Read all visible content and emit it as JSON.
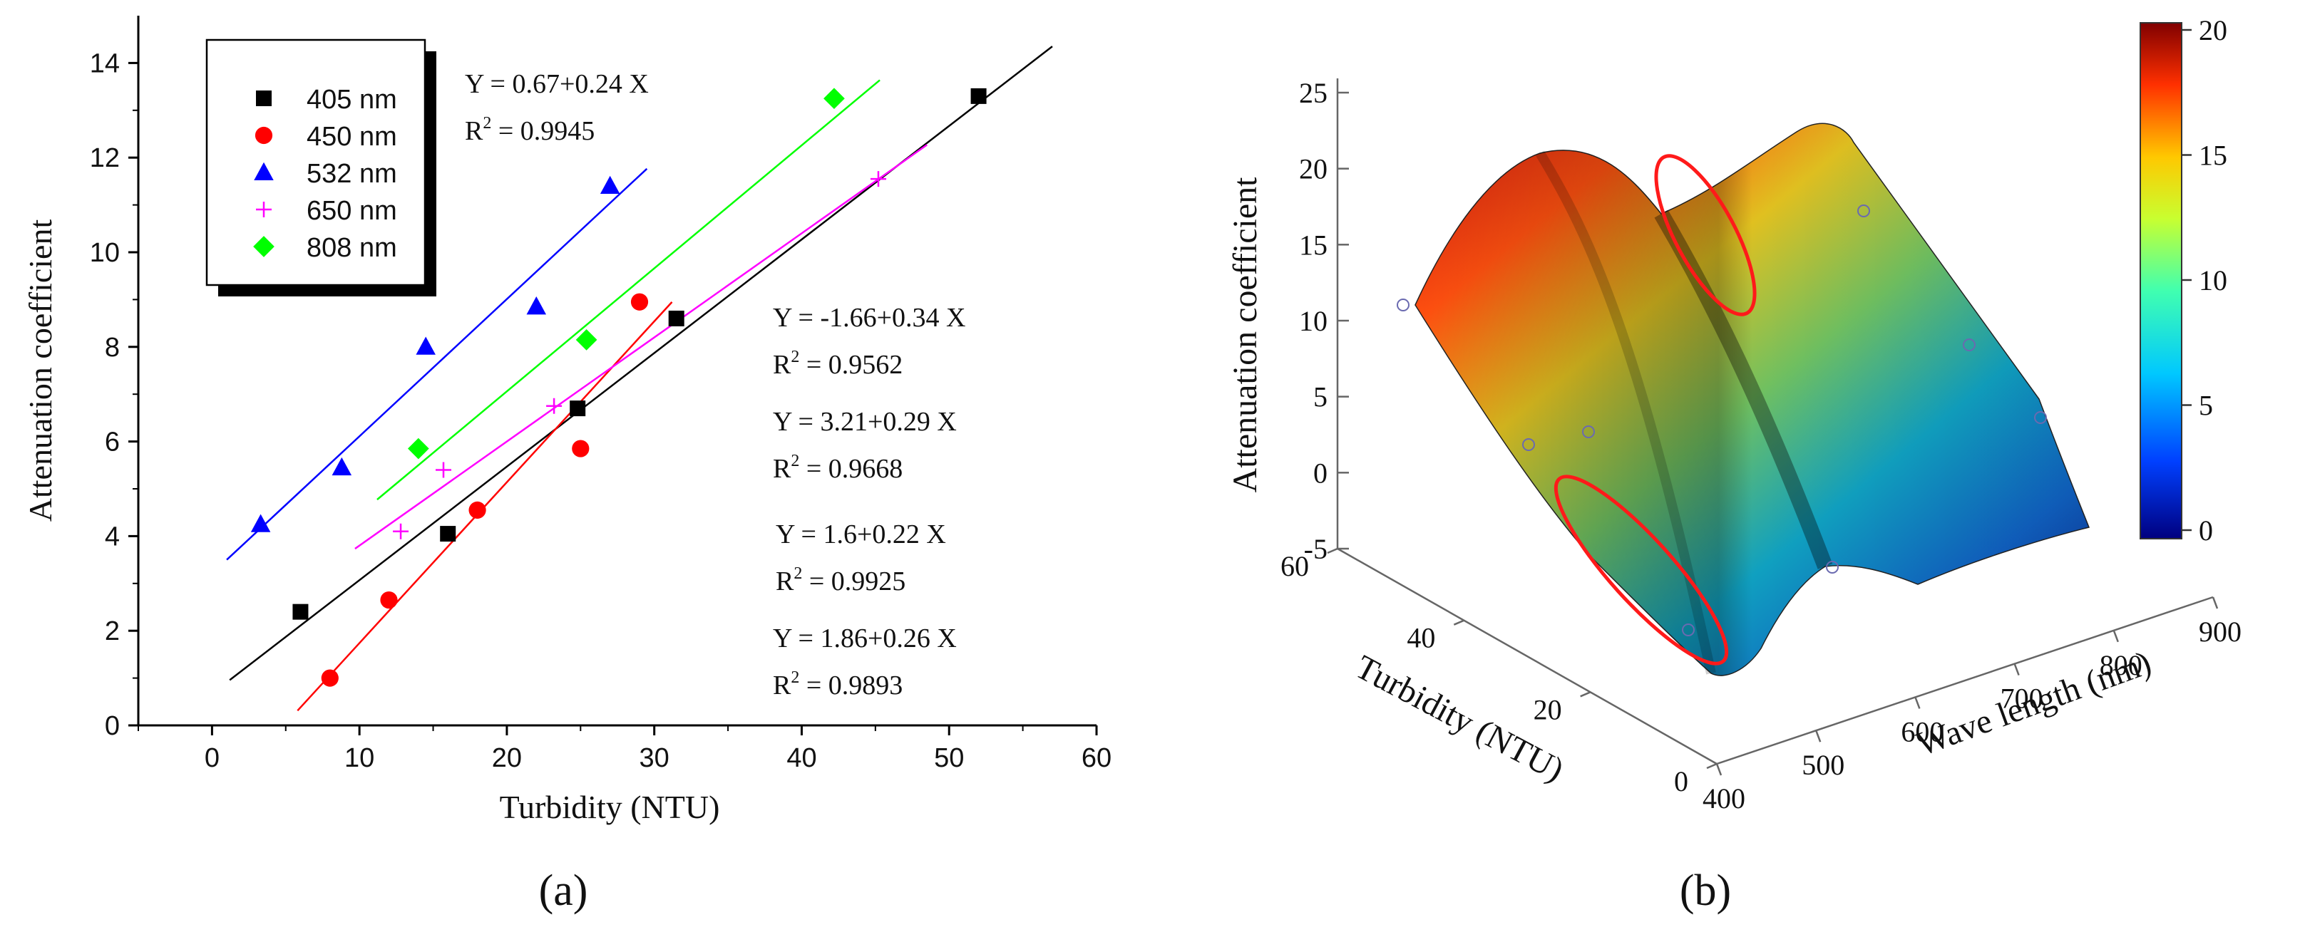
{
  "figure": {
    "panel_labels": [
      "(a)",
      "(b)"
    ]
  },
  "chart_data": [
    {
      "panel": "(a)",
      "type": "scatter",
      "title": "",
      "xlabel": "Turbidity (NTU)",
      "ylabel": "Attenuation coefficient",
      "xlim": [
        -5,
        60
      ],
      "ylim": [
        0,
        15
      ],
      "xticks": [
        0,
        10,
        20,
        30,
        40,
        50,
        60
      ],
      "yticks": [
        0,
        2,
        4,
        6,
        8,
        10,
        12,
        14
      ],
      "legend_position": "top-left",
      "series": [
        {
          "name": "405 nm",
          "color": "#000000",
          "marker": "square",
          "x": [
            6,
            16,
            24.8,
            31.5,
            52
          ],
          "y": [
            2.4,
            4.05,
            6.7,
            8.6,
            13.3
          ],
          "fit_x": [
            1.2,
            57
          ],
          "fit_intercept": 0.67,
          "fit_slope": 0.24
        },
        {
          "name": "450 nm",
          "color": "#ff0000",
          "marker": "circle",
          "x": [
            8,
            12,
            18,
            25,
            29
          ],
          "y": [
            1.0,
            2.65,
            4.55,
            5.85,
            8.95
          ],
          "fit_x": [
            5.8,
            31.2
          ],
          "fit_intercept": -1.66,
          "fit_slope": 0.34
        },
        {
          "name": "532 nm",
          "color": "#0000ff",
          "marker": "triangle",
          "x": [
            3.3,
            8.8,
            14.5,
            22,
            27
          ],
          "y": [
            4.25,
            5.45,
            8.0,
            8.85,
            11.4
          ],
          "fit_x": [
            1,
            29.5
          ],
          "fit_intercept": 3.21,
          "fit_slope": 0.29
        },
        {
          "name": "650 nm",
          "color": "#ff00ff",
          "marker": "plus",
          "x": [
            12.8,
            15.7,
            23.2,
            45.2
          ],
          "y": [
            4.1,
            5.4,
            6.75,
            11.55
          ],
          "fit_x": [
            9.7,
            48.5
          ],
          "fit_intercept": 1.6,
          "fit_slope": 0.22
        },
        {
          "name": "808 nm",
          "color": "#00ff00",
          "marker": "diamond",
          "x": [
            14,
            25.4,
            42.2
          ],
          "y": [
            5.85,
            8.15,
            13.25
          ],
          "fit_x": [
            11.2,
            45.3
          ],
          "fit_intercept": 1.86,
          "fit_slope": 0.26
        }
      ],
      "annotations": [
        {
          "eq": "Y = 0.67+0.24 X",
          "r2_prefix": "R",
          "r2_sup": "2",
          "r2_value": " = 0.9945"
        },
        {
          "eq": "Y = -1.66+0.34 X",
          "r2_prefix": "R",
          "r2_sup": "2",
          "r2_value": " = 0.9562"
        },
        {
          "eq": "Y = 3.21+0.29 X",
          "r2_prefix": "R",
          "r2_sup": "2",
          "r2_value": " = 0.9668"
        },
        {
          "eq": "Y = 1.6+0.22 X",
          "r2_prefix": "R",
          "r2_sup": "2",
          "r2_value": " = 0.9925"
        },
        {
          "eq": "Y = 1.86+0.26 X",
          "r2_prefix": "R",
          "r2_sup": "2",
          "r2_value": " = 0.9893"
        }
      ]
    },
    {
      "panel": "(b)",
      "type": "surface3d",
      "title": "",
      "xlabel": "Wave length (nm)",
      "ylabel": "Turbidity (NTU)",
      "zlabel": "Attenuation coefficient",
      "xlim": [
        400,
        900
      ],
      "ylim": [
        0,
        60
      ],
      "zlim": [
        -5,
        25
      ],
      "xticks": [
        400,
        500,
        600,
        700,
        800,
        900
      ],
      "yticks": [
        0,
        20,
        40,
        60
      ],
      "zticks": [
        -5,
        0,
        5,
        10,
        15,
        20,
        25
      ],
      "colorbar": {
        "min": 0,
        "max": 20,
        "ticks": [
          0,
          5,
          10,
          15,
          20
        ],
        "colors": [
          "#00007f",
          "#0050ff",
          "#00dfff",
          "#7fff7f",
          "#ffdf00",
          "#ff5000",
          "#7f0000"
        ]
      },
      "highlight_ellipses": 2
    }
  ]
}
